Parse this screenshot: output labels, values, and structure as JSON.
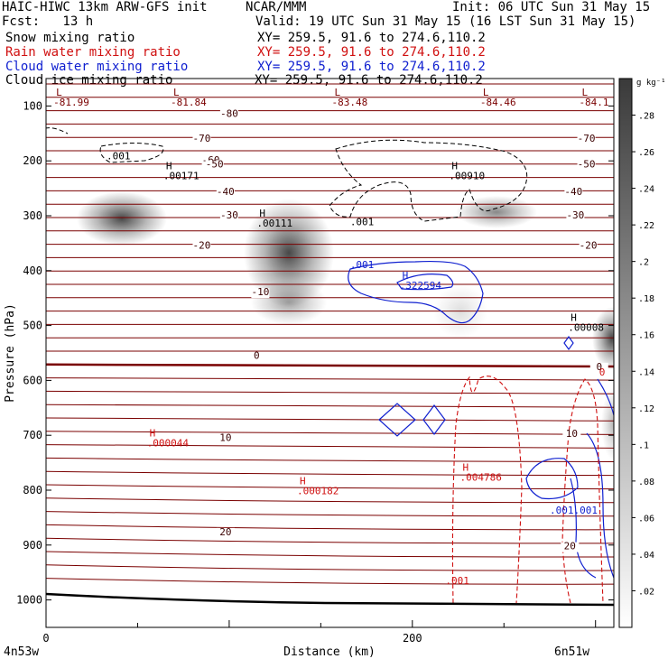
{
  "header": {
    "left_line1": "HAIC-HIWC 13km ARW-GFS init",
    "center_line1": "NCAR/MMM",
    "right_line1": "Init: 06 UTC Sun 31 May 15",
    "fcst": "Fcst:   13 h",
    "valid": "Valid: 19 UTC Sun 31 May 15 (16 LST Sun 31 May 15)"
  },
  "fields": [
    {
      "label": "Snow mixing ratio",
      "xy": "XY= 259.5, 91.6 to 274.6,110.2",
      "color": "#000000"
    },
    {
      "label": "Rain water mixing ratio",
      "xy": "XY= 259.5, 91.6 to 274.6,110.2",
      "color": "#d01010"
    },
    {
      "label": "Cloud water mixing ratio",
      "xy": "XY= 259.5, 91.6 to 274.6,110.2",
      "color": "#1020d0"
    },
    {
      "label": "Cloud ice mixing ratio",
      "xy": "XY= 259.5, 91.6 to 274.6,110.2",
      "color": "#000000"
    }
  ],
  "chart_data": {
    "type": "cross-section contour",
    "xlabel": "Distance (km)",
    "ylabel": "Pressure (hPa)",
    "xlim": [
      0,
      310
    ],
    "ylim": [
      1050,
      50
    ],
    "x_ticks": [
      0,
      200
    ],
    "y_ticks": [
      100,
      200,
      300,
      400,
      500,
      600,
      700,
      800,
      900,
      1000
    ],
    "x_start_label": "4n53w",
    "x_end_label": "6n51w",
    "colorbar": {
      "unit": "g kg⁻¹",
      "ticks": [
        ".02",
        ".04",
        ".06",
        ".08",
        ".1",
        ".12",
        ".14",
        ".16",
        ".18",
        ".2",
        ".22",
        ".24",
        ".26",
        ".28"
      ]
    },
    "temperature_labels": [
      {
        "text": "-80",
        "x": 100,
        "p": 120
      },
      {
        "text": "-70",
        "x": 85,
        "p": 165
      },
      {
        "text": "-70",
        "x": 295,
        "p": 165
      },
      {
        "text": "-60",
        "x": 90,
        "p": 205
      },
      {
        "text": "-50",
        "x": 92,
        "p": 212
      },
      {
        "text": "-50",
        "x": 295,
        "p": 212
      },
      {
        "text": "-40",
        "x": 98,
        "p": 262
      },
      {
        "text": "-40",
        "x": 288,
        "p": 262
      },
      {
        "text": "-30",
        "x": 100,
        "p": 305
      },
      {
        "text": "-30",
        "x": 289,
        "p": 305
      },
      {
        "text": "-20",
        "x": 85,
        "p": 360
      },
      {
        "text": "-20",
        "x": 296,
        "p": 360
      },
      {
        "text": "-10",
        "x": 117,
        "p": 445
      },
      {
        "text": "0",
        "x": 115,
        "p": 561
      },
      {
        "text": "0",
        "x": 302,
        "p": 581
      },
      {
        "text": "10",
        "x": 98,
        "p": 710
      },
      {
        "text": "10",
        "x": 287,
        "p": 703
      },
      {
        "text": "20",
        "x": 98,
        "p": 882
      },
      {
        "text": "20",
        "x": 286,
        "p": 908
      }
    ],
    "highs_lows": [
      {
        "mark": "L",
        "value": "-81.99",
        "x": 4,
        "p": 81,
        "color": "#7a0000"
      },
      {
        "mark": "L",
        "value": "-81.84",
        "x": 68,
        "p": 81,
        "color": "#7a0000"
      },
      {
        "mark": "L",
        "value": "-83.48",
        "x": 156,
        "p": 81,
        "color": "#7a0000"
      },
      {
        "mark": "L",
        "value": "-84.46",
        "x": 237,
        "p": 81,
        "color": "#7a0000"
      },
      {
        "mark": "L",
        "value": "-84.1",
        "x": 291,
        "p": 81,
        "color": "#7a0000"
      },
      {
        "mark": "H",
        "value": ".00171",
        "x": 64,
        "p": 215,
        "color": "#000000"
      },
      {
        "mark": "H",
        "value": ".00910",
        "x": 220,
        "p": 215,
        "color": "#000000"
      },
      {
        "mark": "H",
        "value": ".00111",
        "x": 115,
        "p": 302,
        "color": "#000000"
      },
      {
        "mark": "H",
        "value": ".322594",
        "x": 193,
        "p": 415,
        "color": "#1020d0"
      },
      {
        "mark": "H",
        "value": ".00008",
        "x": 285,
        "p": 492,
        "color": "#000000"
      },
      {
        "mark": "H",
        "value": ".000044",
        "x": 55,
        "p": 702,
        "color": "#d01010"
      },
      {
        "mark": "H",
        "value": ".004786",
        "x": 226,
        "p": 765,
        "color": "#d01010"
      },
      {
        "mark": "H",
        "value": ".000182",
        "x": 137,
        "p": 789,
        "color": "#d01010"
      }
    ],
    "contour_labels": [
      {
        "text": ".001",
        "x": 33,
        "p": 197,
        "color": "#000000"
      },
      {
        "text": ".001",
        "x": 166,
        "p": 317,
        "color": "#000000"
      },
      {
        "text": ".001",
        "x": 166,
        "p": 395,
        "color": "#1020d0"
      },
      {
        "text": ".001.001",
        "x": 275,
        "p": 843,
        "color": "#1020d0"
      },
      {
        "text": ".001",
        "x": 218,
        "p": 971,
        "color": "#d01010"
      },
      {
        "text": "0",
        "x": 302,
        "p": 591,
        "color": "#d01010"
      }
    ]
  }
}
